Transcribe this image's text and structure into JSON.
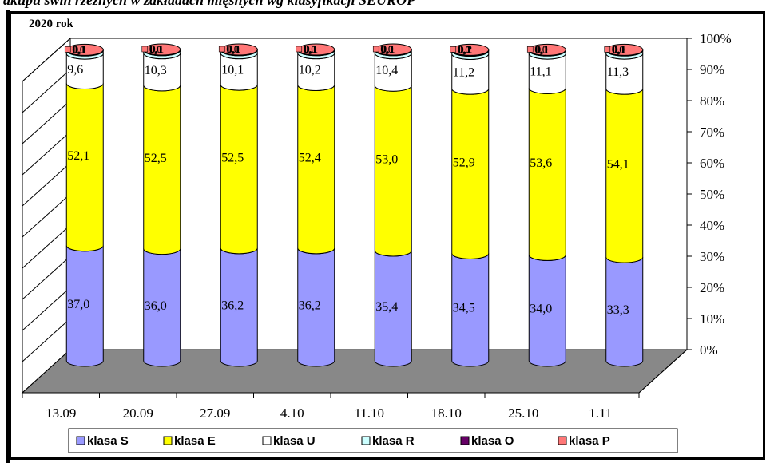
{
  "page_title": "akupu świń rzeźnych w zakładach mięsnych wg klasyfikacji SEUROP",
  "chart_data": {
    "type": "bar",
    "stacked": true,
    "three_d": true,
    "title": "2020 rok",
    "categories": [
      "13.09",
      "20.09",
      "27.09",
      "4.10",
      "11.10",
      "18.10",
      "25.10",
      "1.11"
    ],
    "y_axis": {
      "ticks": [
        "0%",
        "10%",
        "20%",
        "30%",
        "40%",
        "50%",
        "60%",
        "70%",
        "80%",
        "90%",
        "100%"
      ],
      "ylim": [
        0,
        100
      ],
      "position": "right"
    },
    "grid": false,
    "legend_position": "bottom",
    "series": [
      {
        "name": "klasa S",
        "color": "#9999ff",
        "values": [
          37.0,
          36.0,
          36.2,
          36.2,
          35.4,
          34.5,
          34.0,
          33.3
        ],
        "labels": [
          "37,0",
          "36,0",
          "36,2",
          "36,2",
          "35,4",
          "34,5",
          "34,0",
          "33,3"
        ]
      },
      {
        "name": "klasa E",
        "color": "#ffff00",
        "values": [
          52.1,
          52.5,
          52.5,
          52.4,
          53.0,
          52.9,
          53.6,
          54.1
        ],
        "labels": [
          "52,1",
          "52,5",
          "52,5",
          "52,4",
          "53,0",
          "52,9",
          "53,6",
          "54,1"
        ]
      },
      {
        "name": "klasa U",
        "color": "#ffffff",
        "values": [
          9.6,
          10.3,
          10.1,
          10.2,
          10.4,
          11.2,
          11.1,
          11.3
        ],
        "labels": [
          "9,6",
          "10,3",
          "10,1",
          "10,2",
          "10,4",
          "11,2",
          "11,1",
          "11,3"
        ]
      },
      {
        "name": "klasa R",
        "color": "#ccffff",
        "values": [
          1.0,
          1.0,
          1.0,
          1.0,
          1.0,
          1.0,
          1.0,
          1.0
        ],
        "labels": [
          "1,0",
          "1,0",
          "1,0",
          "1,0",
          "1,0",
          "1,0",
          "1,0",
          "1,0"
        ]
      },
      {
        "name": "klasa O",
        "color": "#660066",
        "values": [
          0.1,
          0.1,
          0.1,
          0.1,
          0.1,
          0.1,
          0.1,
          0.1
        ],
        "labels": [
          "0,1",
          "0,1",
          "0,1",
          "0,1",
          "0,1",
          "0,1",
          "0,1",
          "0,1"
        ]
      },
      {
        "name": "klasa P",
        "color": "#ff7777",
        "values": [
          0.1,
          0.1,
          0.1,
          0.1,
          0.1,
          0.2,
          0.1,
          0.1
        ],
        "labels": [
          "0,1",
          "0,1",
          "0,1",
          "0,1",
          "0,1",
          "0,2",
          "0,1",
          "0,1"
        ]
      }
    ]
  }
}
